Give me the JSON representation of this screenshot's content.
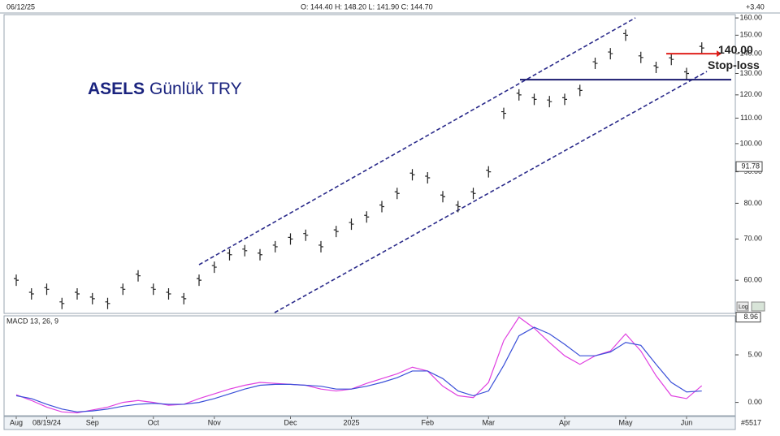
{
  "chart_data": [
    {
      "type": "price-bars",
      "title_symbol": "ASELS",
      "title_rest": "Günlük TRY",
      "date_label": "06/12/25",
      "quote_label": "O: 144.40   H: 148.20   L: 141.90   C: 144.70",
      "change_label": "+3.40",
      "categories": [
        "Aug",
        null,
        "08/19/24",
        null,
        null,
        "Sep",
        null,
        null,
        null,
        "Oct",
        null,
        null,
        null,
        "Nov",
        null,
        null,
        null,
        null,
        "Dec",
        null,
        null,
        null,
        "2025",
        null,
        null,
        null,
        null,
        "Feb",
        null,
        null,
        null,
        "Mar",
        null,
        null,
        null,
        null,
        "Apr",
        null,
        null,
        null,
        "May",
        null,
        null,
        null,
        "Jun",
        null
      ],
      "values": [
        60,
        57,
        58,
        55,
        57,
        56,
        55,
        58,
        61,
        58,
        57,
        56,
        60,
        63,
        66,
        67,
        66,
        68,
        70,
        71,
        68,
        72,
        74,
        76,
        79,
        83,
        89,
        88,
        82,
        79,
        83,
        90,
        112,
        120,
        118,
        117,
        118,
        122,
        135,
        140,
        150,
        138,
        133,
        137,
        130,
        143
      ],
      "color": "#222222",
      "log": true,
      "ylim": [
        53,
        162
      ],
      "yticks": [
        {
          "value": 60,
          "label": "60.00"
        },
        {
          "value": 70,
          "label": "70.00"
        },
        {
          "value": 80,
          "label": "80.00"
        },
        {
          "value": 90,
          "label": "90.00"
        },
        {
          "value": 100,
          "label": "100.00"
        },
        {
          "value": 110,
          "label": "110.00"
        },
        {
          "value": 120,
          "label": "120.00"
        },
        {
          "value": 130,
          "label": "130.00"
        },
        {
          "value": 140,
          "label": "140.00"
        },
        {
          "value": 150,
          "label": "150.00"
        },
        {
          "value": 160,
          "label": "160.00"
        }
      ],
      "marker_label": {
        "value": 91.78,
        "label": "91.78"
      },
      "support_level": 127,
      "stop_loss": {
        "value": 140,
        "label": "140.00"
      },
      "stop_loss_text": "Stop-loss",
      "scale_label": "Log",
      "symbol_code": "#5517"
    },
    {
      "type": "line",
      "title": "MACD 13, 26, 9",
      "series": [
        {
          "name": "MACD",
          "color": "#e040e0",
          "values": [
            0.8,
            0.2,
            -0.5,
            -1.0,
            -1.1,
            -0.8,
            -0.5,
            0,
            0.2,
            0,
            -0.3,
            -0.2,
            0.4,
            0.9,
            1.4,
            1.8,
            2.1,
            2.0,
            1.9,
            1.8,
            1.4,
            1.2,
            1.4,
            2.0,
            2.5,
            3.0,
            3.7,
            3.3,
            1.7,
            0.7,
            0.5,
            2.1,
            6.5,
            8.96,
            7.8,
            6.3,
            4.9,
            4.0,
            4.9,
            5.4,
            7.2,
            5.4,
            2.8,
            0.7,
            0.4,
            1.75
          ]
        },
        {
          "name": "Signal",
          "color": "#3a4fd8",
          "values": [
            0.7,
            0.4,
            -0.2,
            -0.7,
            -1.0,
            -0.9,
            -0.7,
            -0.4,
            -0.2,
            -0.1,
            -0.2,
            -0.2,
            0,
            0.4,
            0.9,
            1.4,
            1.8,
            1.9,
            1.9,
            1.8,
            1.7,
            1.4,
            1.4,
            1.7,
            2.1,
            2.6,
            3.3,
            3.3,
            2.5,
            1.2,
            0.7,
            1.2,
            3.9,
            7.0,
            7.9,
            7.2,
            6.1,
            4.9,
            4.9,
            5.3,
            6.3,
            6.0,
            4.0,
            2.1,
            1.1,
            1.2
          ]
        }
      ],
      "ylim": [
        -1.4,
        9.1
      ],
      "yticks": [
        {
          "value": 0,
          "label": "0.00"
        },
        {
          "value": 5,
          "label": "5.00"
        }
      ],
      "max_label": {
        "value": 8.96,
        "label": "8.96"
      }
    }
  ]
}
